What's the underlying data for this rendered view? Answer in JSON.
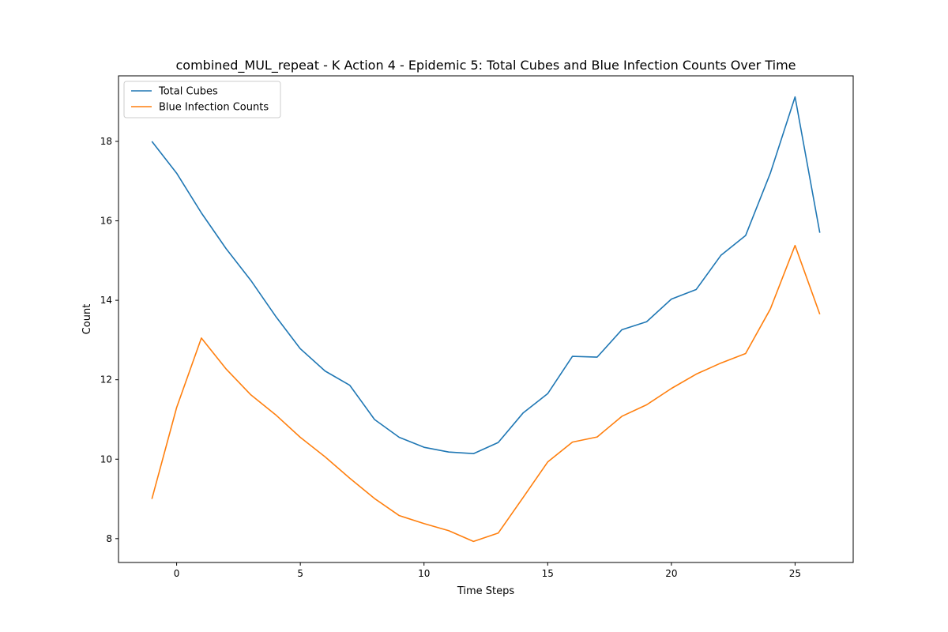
{
  "chart_data": {
    "type": "line",
    "title": "combined_MUL_repeat - K Action 4 - Epidemic 5: Total Cubes and Blue Infection Counts Over Time",
    "xlabel": "Time Steps",
    "ylabel": "Count",
    "xlim": [
      -2.35,
      27.35
    ],
    "ylim": [
      7.4,
      19.65
    ],
    "xticks": [
      0,
      5,
      10,
      15,
      20,
      25
    ],
    "yticks": [
      8,
      10,
      12,
      14,
      16,
      18
    ],
    "grid": false,
    "legend_position": "top-left",
    "x": [
      -1,
      0,
      1,
      2,
      3,
      4,
      5,
      6,
      7,
      8,
      9,
      10,
      11,
      12,
      13,
      14,
      15,
      16,
      17,
      18,
      19,
      20,
      21,
      22,
      23,
      24,
      25,
      26
    ],
    "series": [
      {
        "name": "Total Cubes",
        "color": "#1f77b4",
        "values": [
          18.0,
          17.2,
          16.2,
          15.3,
          14.5,
          13.6,
          12.78,
          12.22,
          11.86,
          11.0,
          10.55,
          10.3,
          10.18,
          10.14,
          10.42,
          11.16,
          11.65,
          12.59,
          12.57,
          13.26,
          13.46,
          14.03,
          14.27,
          15.13,
          15.63,
          17.2,
          19.12,
          15.7
        ]
      },
      {
        "name": "Blue Infection Counts",
        "color": "#ff7f0e",
        "values": [
          9.0,
          11.3,
          13.05,
          12.27,
          11.62,
          11.12,
          10.55,
          10.06,
          9.52,
          9.01,
          8.58,
          8.38,
          8.2,
          7.93,
          8.14,
          9.03,
          9.93,
          10.43,
          10.56,
          11.08,
          11.37,
          11.78,
          12.14,
          12.42,
          12.66,
          13.78,
          15.38,
          13.65
        ]
      }
    ]
  }
}
